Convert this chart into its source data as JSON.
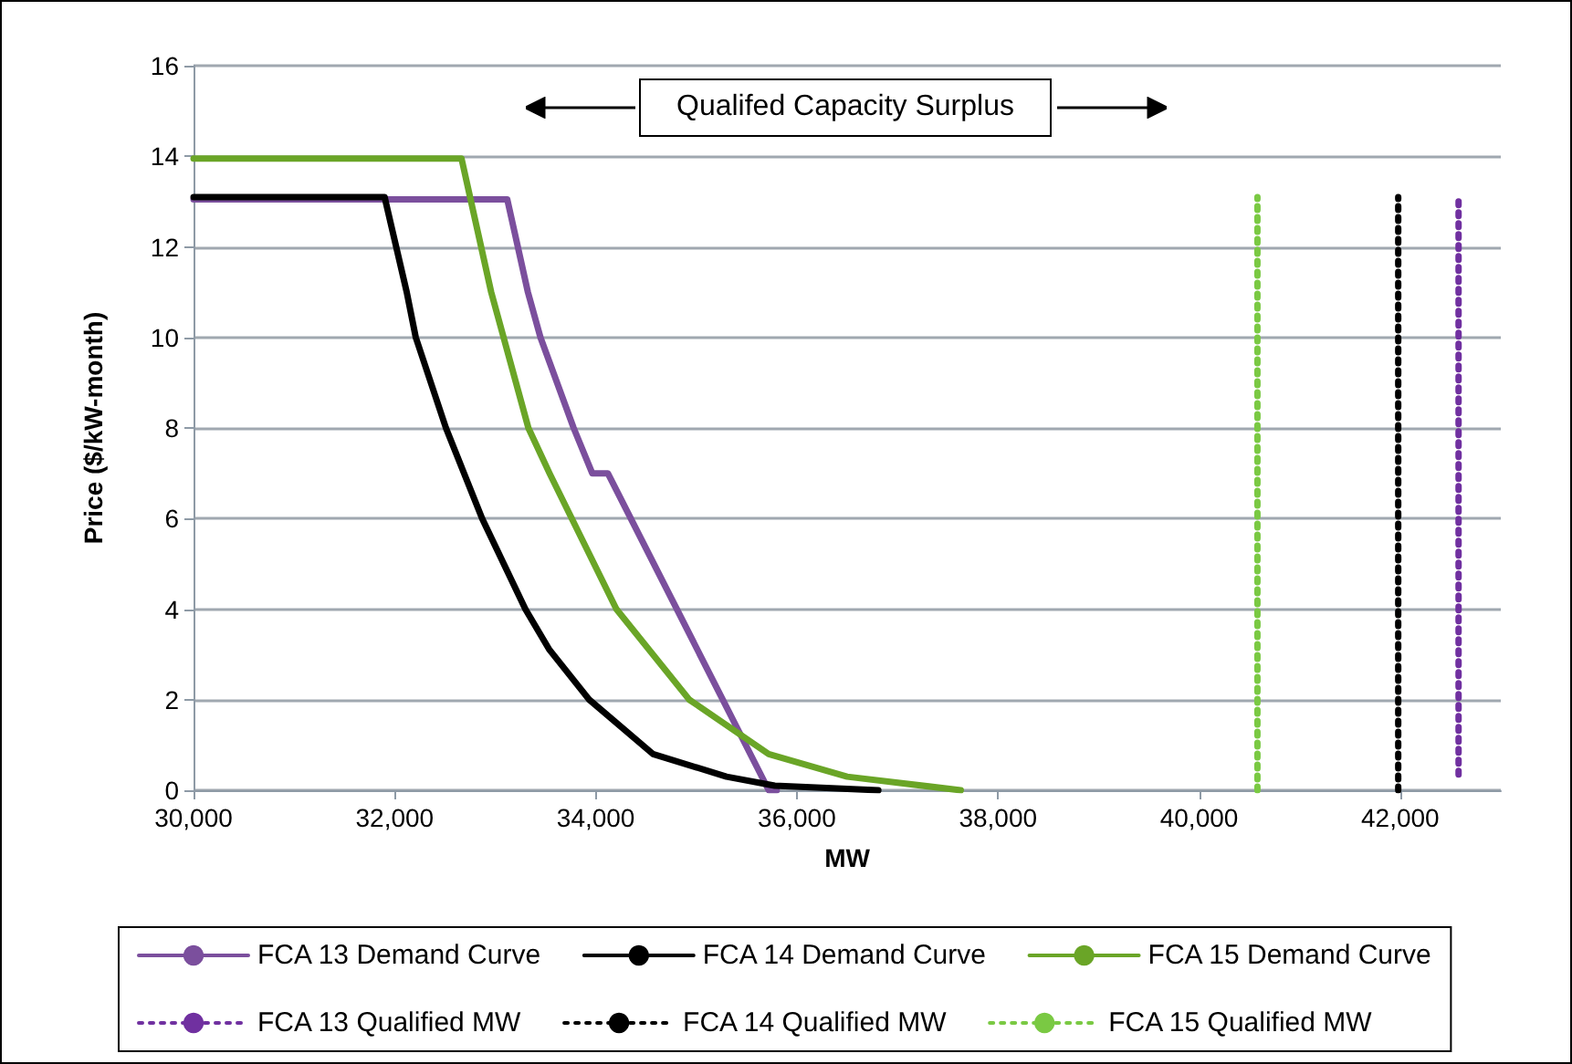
{
  "chart_data": {
    "type": "line",
    "xlabel": "MW",
    "ylabel": "Price ($/kW-month)",
    "annotations": [
      "Qualifed Capacity Surplus"
    ],
    "xlim": [
      30000,
      43000
    ],
    "ylim": [
      0,
      16
    ],
    "xticks": [
      {
        "value": 30000,
        "label": "30,000"
      },
      {
        "value": 32000,
        "label": "32,000"
      },
      {
        "value": 34000,
        "label": "34,000"
      },
      {
        "value": 36000,
        "label": "36,000"
      },
      {
        "value": 38000,
        "label": "38,000"
      },
      {
        "value": 40000,
        "label": "40,000"
      },
      {
        "value": 42000,
        "label": "42,000"
      }
    ],
    "yticks": [
      0,
      2,
      4,
      6,
      8,
      10,
      12,
      14,
      16
    ],
    "grid": "y",
    "legend": "bottom",
    "marker": "none",
    "line_style": "solid",
    "series": [
      {
        "name": "FCA 13 Demand Curve",
        "color": "#7b4f9d",
        "x": [
          30000,
          33120,
          33325,
          33450,
          33780,
          33965,
          34120,
          35720,
          35800
        ],
        "values": [
          13.05,
          13.05,
          11,
          10,
          8,
          7,
          7,
          0,
          0
        ]
      },
      {
        "name": "FCA 14 Demand Curve",
        "color": "#000000",
        "x": [
          30000,
          31900,
          32120,
          32210,
          32510,
          32870,
          33300,
          33540,
          33935,
          34570,
          35300,
          35780,
          36810
        ],
        "values": [
          13.1,
          13.1,
          11,
          10,
          8,
          6,
          4,
          3.1,
          2,
          0.8,
          0.3,
          0.1,
          0
        ]
      },
      {
        "name": "FCA 15 Demand Curve",
        "color": "#6aa527",
        "x": [
          30000,
          32665,
          32960,
          33330,
          33540,
          34205,
          34930,
          35720,
          36500,
          37630
        ],
        "values": [
          13.95,
          13.95,
          11,
          8,
          7,
          4,
          2,
          0.8,
          0.3,
          0
        ]
      },
      {
        "name": "FCA 13 Qualified MW",
        "color": "#7030a0",
        "line_style": "dotted",
        "x": [
          42580,
          42580
        ],
        "values": [
          0.35,
          13.05
        ]
      },
      {
        "name": "FCA 14 Qualified MW",
        "color": "#000000",
        "line_style": "dotted",
        "x": [
          41980,
          41980
        ],
        "values": [
          0,
          13.1
        ]
      },
      {
        "name": "FCA 15 Qualified MW",
        "color": "#7ac943",
        "line_style": "dotted",
        "x": [
          40580,
          40580
        ],
        "values": [
          0,
          13.1
        ]
      }
    ]
  }
}
